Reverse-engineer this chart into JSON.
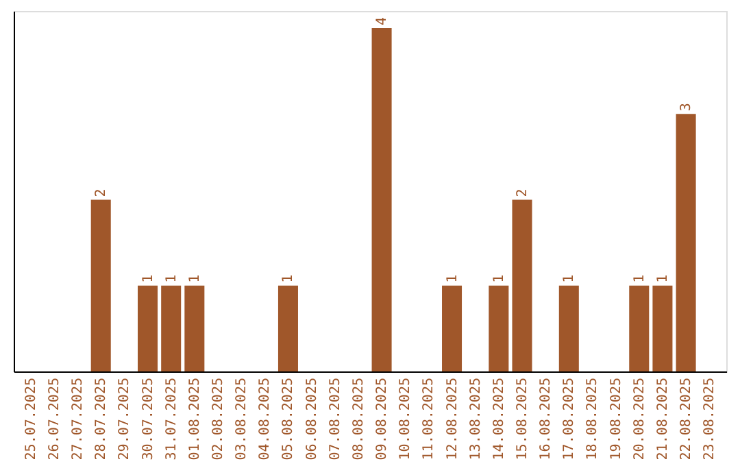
{
  "chart_data": {
    "type": "bar",
    "categories": [
      "25.07.2025",
      "26.07.2025",
      "27.07.2025",
      "28.07.2025",
      "29.07.2025",
      "30.07.2025",
      "31.07.2025",
      "01.08.2025",
      "02.08.2025",
      "03.08.2025",
      "04.08.2025",
      "05.08.2025",
      "06.08.2025",
      "07.08.2025",
      "08.08.2025",
      "09.08.2025",
      "10.08.2025",
      "11.08.2025",
      "12.08.2025",
      "13.08.2025",
      "14.08.2025",
      "15.08.2025",
      "16.08.2025",
      "17.08.2025",
      "18.08.2025",
      "19.08.2025",
      "20.08.2025",
      "21.08.2025",
      "22.08.2025",
      "23.08.2025"
    ],
    "values": [
      0,
      0,
      0,
      2,
      0,
      1,
      1,
      1,
      0,
      0,
      0,
      1,
      0,
      0,
      0,
      4,
      0,
      0,
      1,
      0,
      1,
      2,
      0,
      1,
      0,
      0,
      1,
      1,
      3,
      0
    ],
    "value_labels": [
      null,
      null,
      null,
      "2",
      null,
      "1",
      "1",
      "1",
      null,
      null,
      null,
      "1",
      null,
      null,
      null,
      "4",
      null,
      null,
      "1",
      null,
      "1",
      "2",
      null,
      "1",
      null,
      null,
      "1",
      "1",
      "3",
      null
    ],
    "color": "#a0572a",
    "tick_labels": "x",
    "grid": false
  }
}
